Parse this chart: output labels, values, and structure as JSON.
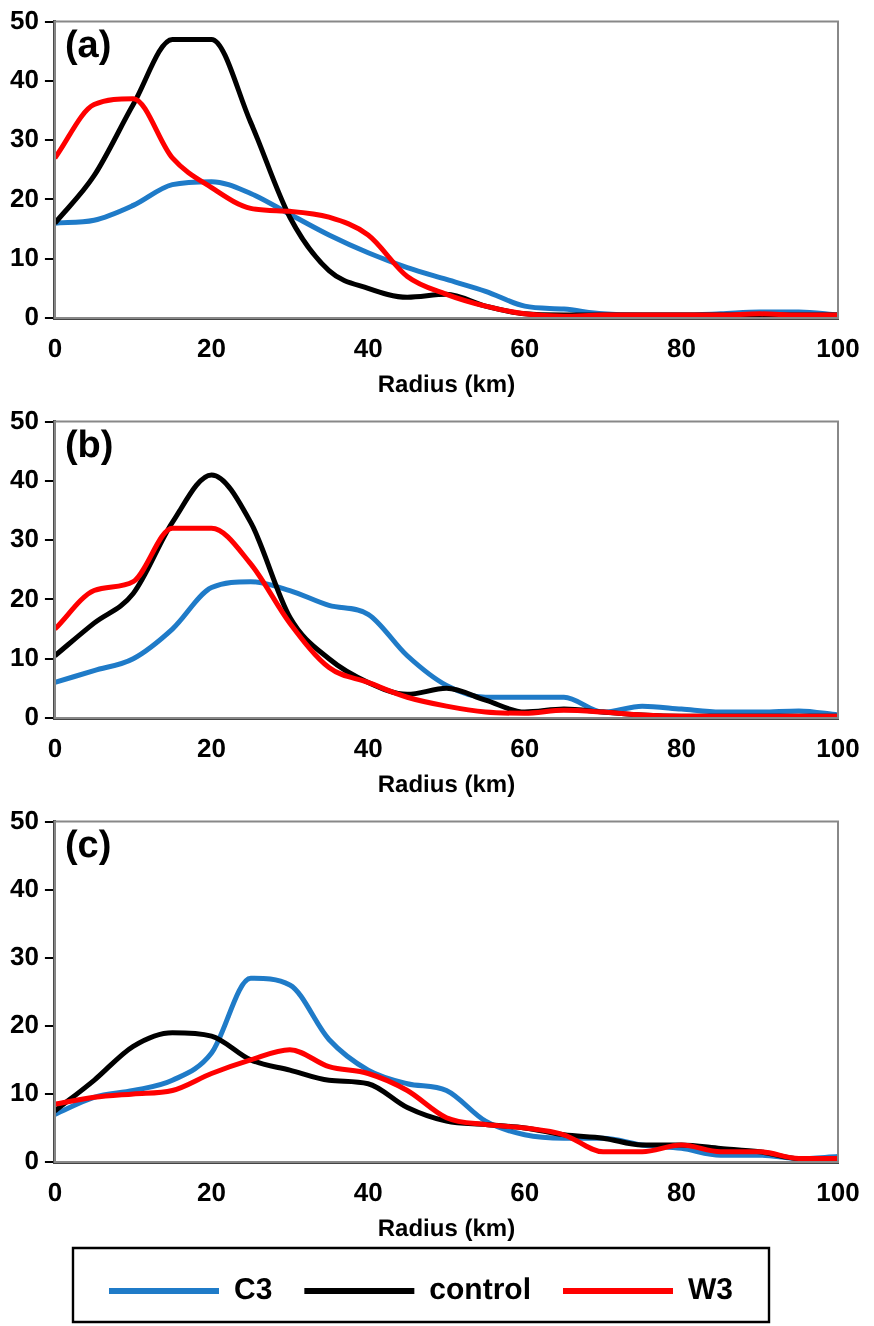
{
  "chart_data": [
    {
      "type": "line",
      "xlabel": "Radius (km)",
      "annotations": [
        "(a)"
      ],
      "x": [
        0,
        5,
        10,
        15,
        20,
        25,
        30,
        35,
        40,
        45,
        50,
        55,
        60,
        65,
        70,
        75,
        80,
        85,
        90,
        95,
        100
      ],
      "xlim": [
        0,
        100
      ],
      "xticks": [
        0,
        20,
        40,
        60,
        80,
        100
      ],
      "ylim": [
        0,
        50
      ],
      "yticks": [
        0,
        10,
        20,
        30,
        40,
        50
      ],
      "marker": "none",
      "series": [
        {
          "color": "#1f7bc8",
          "values": [
            16,
            16.5,
            19,
            22.5,
            23,
            21,
            17.5,
            14,
            11,
            8.5,
            6.5,
            4.5,
            2,
            1.5,
            0.7,
            0.5,
            0.5,
            0.7,
            1,
            1,
            0.5
          ]
        },
        {
          "color": "#000000",
          "values": [
            16,
            24,
            36,
            47,
            47,
            33,
            17,
            8,
            5,
            3.5,
            4,
            2,
            0.7,
            0.5,
            0.5,
            0.5,
            0.5,
            0.5,
            0.5,
            0.5,
            0.5
          ]
        },
        {
          "color": "#ff0000",
          "values": [
            27,
            36,
            37,
            27,
            22,
            18.5,
            18,
            17,
            14,
            7,
            4,
            2,
            0.7,
            0.3,
            0.5,
            0.5,
            0.5,
            0.5,
            0.7,
            0.5,
            0.5
          ]
        }
      ]
    },
    {
      "type": "line",
      "xlabel": "Radius (km)",
      "annotations": [
        "(b)"
      ],
      "x": [
        0,
        5,
        10,
        15,
        20,
        25,
        30,
        35,
        40,
        45,
        50,
        55,
        60,
        65,
        70,
        75,
        80,
        85,
        90,
        95,
        100
      ],
      "xlim": [
        0,
        100
      ],
      "xticks": [
        0,
        20,
        40,
        60,
        80,
        100
      ],
      "ylim": [
        0,
        50
      ],
      "yticks": [
        0,
        10,
        20,
        30,
        40,
        50
      ],
      "marker": "none",
      "series": [
        {
          "color": "#1f7bc8",
          "values": [
            6,
            8,
            10,
            15,
            22,
            23,
            21.5,
            19,
            17.5,
            10.5,
            5.5,
            3.5,
            3.5,
            3.5,
            1,
            2,
            1.5,
            1,
            1,
            1.2,
            0.5
          ]
        },
        {
          "color": "#000000",
          "values": [
            10.5,
            16,
            21,
            33,
            41,
            33,
            17,
            10,
            6,
            4,
            5,
            3,
            1,
            1.5,
            1,
            0.5,
            0.3,
            0.3,
            0.3,
            0.3,
            0.3
          ]
        },
        {
          "color": "#ff0000",
          "values": [
            15,
            21.5,
            23,
            32,
            32,
            26,
            16,
            8.5,
            6,
            3.5,
            2,
            1,
            0.8,
            1.3,
            1,
            0.5,
            0.3,
            0.3,
            0.3,
            0.3,
            0.3
          ]
        }
      ]
    },
    {
      "type": "line",
      "xlabel": "Radius (km)",
      "annotations": [
        "(c)"
      ],
      "x": [
        0,
        5,
        10,
        15,
        20,
        25,
        30,
        35,
        40,
        45,
        50,
        55,
        60,
        65,
        70,
        75,
        80,
        85,
        90,
        95,
        100
      ],
      "xlim": [
        0,
        100
      ],
      "xticks": [
        0,
        20,
        40,
        60,
        80,
        100
      ],
      "ylim": [
        0,
        50
      ],
      "yticks": [
        0,
        10,
        20,
        30,
        40,
        50
      ],
      "marker": "none",
      "legend": "bottom",
      "series": [
        {
          "name": "C3",
          "color": "#1f7bc8",
          "values": [
            7,
            9.5,
            10.5,
            12,
            16,
            27,
            26,
            18,
            13.5,
            11.5,
            10.5,
            6,
            4,
            3.5,
            3.5,
            2.5,
            2,
            1,
            1,
            0.5,
            0.8
          ]
        },
        {
          "name": "control",
          "color": "#000000",
          "values": [
            7.5,
            12,
            17,
            19,
            18.5,
            15,
            13.5,
            12,
            11.5,
            8,
            6,
            5.5,
            5,
            4,
            3.5,
            2.5,
            2.5,
            2,
            1.5,
            0.5,
            0.5
          ]
        },
        {
          "name": "W3",
          "color": "#ff0000",
          "values": [
            8.5,
            9.5,
            10,
            10.5,
            13,
            15,
            16.5,
            14,
            13,
            10.5,
            6.5,
            5.5,
            5,
            4,
            1.5,
            1.5,
            2.5,
            1.5,
            1.5,
            0.5,
            0.5
          ]
        }
      ]
    }
  ]
}
